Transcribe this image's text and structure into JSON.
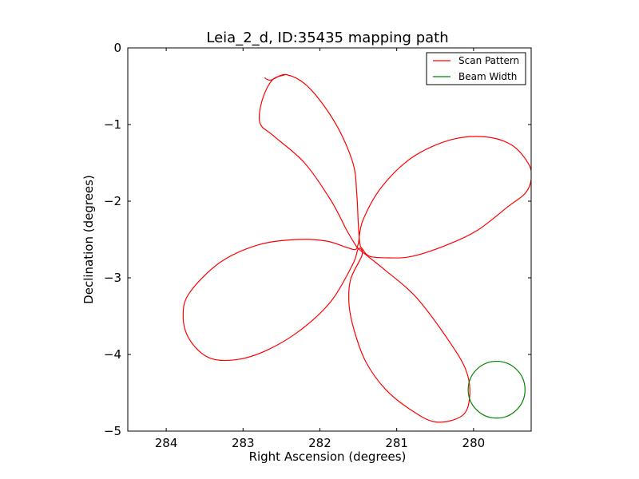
{
  "chart_data": {
    "type": "line",
    "title": "Leia_2_d, ID:35435 mapping path",
    "xlabel": "Right Ascension (degrees)",
    "ylabel": "Declination (degrees)",
    "xlim": [
      284.5,
      279.25
    ],
    "ylim": [
      -5,
      0
    ],
    "x_ticks": [
      284,
      283,
      282,
      281,
      280
    ],
    "x_tick_labels": [
      "284",
      "283",
      "282",
      "281",
      "280"
    ],
    "y_ticks": [
      0,
      -1,
      -2,
      -3,
      -4,
      -5
    ],
    "y_tick_labels": [
      "0",
      "−1",
      "−2",
      "−3",
      "−4",
      "−5"
    ],
    "grid": false,
    "legend": {
      "placement": "top-right",
      "entries": [
        {
          "label": "Scan Pattern",
          "color": "#ff0000"
        },
        {
          "label": "Beam Width",
          "color": "#008000"
        }
      ]
    },
    "series": [
      {
        "name": "Scan Pattern",
        "color": "#ff0000",
        "x": [
          282.72,
          282.64,
          282.43,
          282.14,
          281.8,
          281.57,
          281.52,
          281.5,
          281.48,
          281.45,
          281.35,
          281.1,
          280.8,
          280.37,
          279.95,
          279.55,
          279.33,
          279.25,
          279.28,
          279.5,
          279.85,
          280.3,
          280.8,
          281.2,
          281.44,
          281.5,
          281.54,
          281.66,
          281.92,
          282.3,
          282.8,
          283.3,
          283.7,
          283.78,
          283.7,
          283.45,
          283.1,
          282.7,
          282.25,
          281.85,
          281.57,
          281.5,
          281.45,
          281.6,
          281.62,
          281.55,
          281.4,
          281.15,
          280.85,
          280.5,
          280.15,
          280.05,
          280.1,
          280.35,
          280.75,
          281.15,
          281.4,
          281.5,
          281.55,
          281.65,
          281.85,
          282.2,
          282.6,
          282.78,
          282.75,
          282.62,
          282.45
        ],
        "y": [
          -0.39,
          -0.42,
          -0.35,
          -0.52,
          -0.98,
          -1.5,
          -1.9,
          -2.3,
          -2.55,
          -2.62,
          -2.72,
          -2.74,
          -2.72,
          -2.58,
          -2.38,
          -2.07,
          -1.9,
          -1.72,
          -1.52,
          -1.27,
          -1.16,
          -1.2,
          -1.43,
          -1.82,
          -2.25,
          -2.55,
          -2.63,
          -2.6,
          -2.52,
          -2.5,
          -2.57,
          -2.8,
          -3.2,
          -3.5,
          -3.8,
          -4.04,
          -4.07,
          -3.95,
          -3.68,
          -3.3,
          -2.82,
          -2.62,
          -2.7,
          -3.02,
          -3.35,
          -3.7,
          -4.1,
          -4.45,
          -4.7,
          -4.88,
          -4.8,
          -4.55,
          -4.2,
          -3.78,
          -3.25,
          -2.9,
          -2.7,
          -2.62,
          -2.55,
          -2.38,
          -2.0,
          -1.5,
          -1.15,
          -0.98,
          -0.68,
          -0.42,
          -0.35
        ]
      },
      {
        "name": "Beam Width",
        "color": "#008000",
        "shape": "circle",
        "center": [
          279.7,
          -4.46
        ],
        "radius": 0.37
      }
    ]
  }
}
